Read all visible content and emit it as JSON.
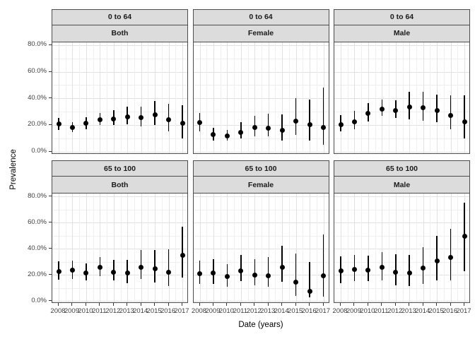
{
  "figure": {
    "kind": "faceted prevalence plot",
    "title": ""
  },
  "chart_data": {
    "type": "scatter",
    "subtype": "pointrange-with-error-bars",
    "title": "",
    "xlabel": "Date (years)",
    "ylabel": "Prevalence",
    "categories": [
      "2008",
      "2009",
      "2010",
      "2011",
      "2012",
      "2013",
      "2014",
      "2015",
      "2016",
      "2017"
    ],
    "y_ticks": [
      {
        "value": 0,
        "label": "0.0%"
      },
      {
        "value": 20,
        "label": "20.0%"
      },
      {
        "value": 40,
        "label": "40.0%"
      },
      {
        "value": 60,
        "label": "60.0%"
      },
      {
        "value": 80,
        "label": "80.0%"
      }
    ],
    "y_minor_ticks": [
      10,
      30,
      50,
      70
    ],
    "ylim": [
      -2.1,
      82.3
    ],
    "grid": true,
    "legend": false,
    "facet_rows": [
      "0 to 64",
      "65 to 100"
    ],
    "facet_cols": [
      "Both",
      "Female",
      "Male"
    ],
    "value_unit": "percent",
    "panels": [
      {
        "age_group": "0 to 64",
        "sex": "Both",
        "estimate": [
          20.5,
          18,
          21,
          24,
          24.5,
          26,
          25.5,
          27.5,
          24,
          21.5
        ],
        "ci_lower": [
          16,
          14.5,
          17,
          20,
          20,
          20.5,
          19,
          20,
          15,
          10
        ],
        "ci_upper": [
          25.5,
          22,
          26,
          29,
          31,
          33.5,
          33.5,
          38,
          36,
          35
        ]
      },
      {
        "age_group": "0 to 64",
        "sex": "Female",
        "estimate": [
          22,
          13,
          11.5,
          14.5,
          18,
          17.5,
          16,
          23,
          20,
          18
        ],
        "ci_lower": [
          15,
          8.5,
          8,
          10,
          11.5,
          11.5,
          8,
          12.5,
          8.5,
          5
        ],
        "ci_upper": [
          29,
          18,
          16,
          22,
          27,
          28.5,
          28,
          40,
          39,
          48
        ]
      },
      {
        "age_group": "0 to 64",
        "sex": "Male",
        "estimate": [
          20,
          22.5,
          28.5,
          32,
          31,
          33.5,
          33,
          31,
          27,
          22.5
        ],
        "ci_lower": [
          15,
          17,
          22.5,
          27,
          25,
          24,
          23,
          22,
          17,
          10
        ],
        "ci_upper": [
          27.5,
          30.5,
          36.5,
          39,
          38.5,
          45,
          45,
          43,
          42,
          42
        ]
      },
      {
        "age_group": "65 to 100",
        "sex": "Both",
        "estimate": [
          22.5,
          23.5,
          21.5,
          25.5,
          22,
          21.5,
          26,
          24.5,
          22,
          35
        ],
        "ci_lower": [
          16.5,
          17,
          15.5,
          19,
          15.5,
          13.5,
          17,
          14,
          11.5,
          18
        ],
        "ci_upper": [
          30.5,
          31,
          29,
          33.5,
          31.5,
          31.5,
          39,
          39,
          39.5,
          57
        ]
      },
      {
        "age_group": "65 to 100",
        "sex": "Female",
        "estimate": [
          21,
          21.5,
          18.5,
          23,
          20,
          19.5,
          26,
          14.5,
          7.5,
          19.5
        ],
        "ci_lower": [
          13,
          13,
          11,
          15,
          12,
          11,
          14.5,
          4,
          2.5,
          3.5
        ],
        "ci_upper": [
          31,
          32,
          28,
          35,
          32,
          33.5,
          42,
          36.5,
          30,
          51
        ]
      },
      {
        "age_group": "65 to 100",
        "sex": "Male",
        "estimate": [
          23,
          24,
          23.5,
          25.5,
          22,
          21.5,
          25,
          30.5,
          33.5,
          49.5
        ],
        "ci_lower": [
          13.5,
          15,
          15,
          16,
          12,
          11.5,
          13,
          15.5,
          16,
          23
        ],
        "ci_upper": [
          34,
          35,
          34.5,
          37.5,
          36,
          35.5,
          41,
          50,
          55.5,
          75.5
        ]
      }
    ]
  },
  "colors": {
    "strip_fill": "#dcdcdc",
    "panel_border": "#4c4c4c",
    "grid_major": "#e1e1e1",
    "grid_minor": "#efefef",
    "point": "#000000",
    "tick_label": "#404040",
    "background": "#ffffff"
  }
}
